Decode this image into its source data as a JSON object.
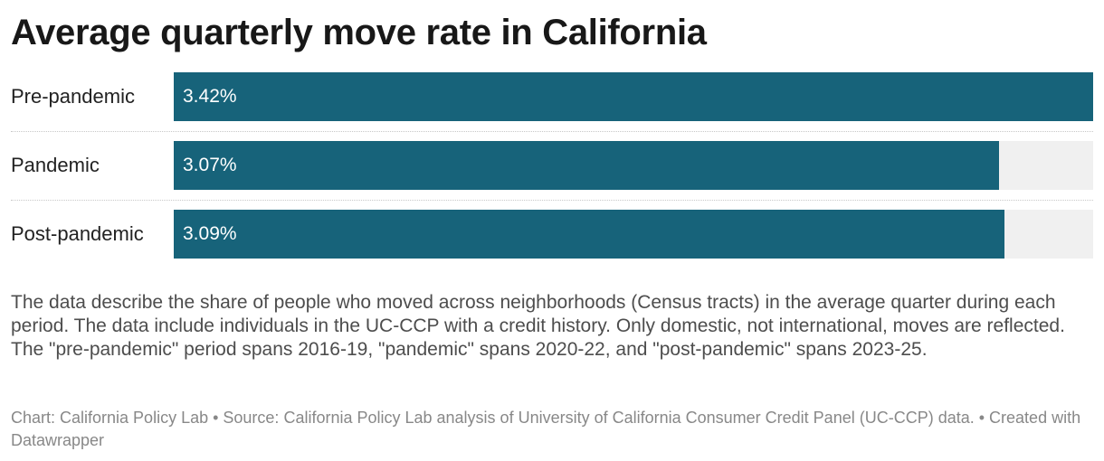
{
  "chart_data": {
    "type": "bar",
    "orientation": "horizontal",
    "title": "Average quarterly move rate in California",
    "categories": [
      "Pre-pandemic",
      "Pandemic",
      "Post-pandemic"
    ],
    "values": [
      3.42,
      3.07,
      3.09
    ],
    "value_labels": [
      "3.42%",
      "3.07%",
      "3.09%"
    ],
    "unit": "%",
    "xlim": [
      0,
      3.42
    ],
    "xlabel": "",
    "ylabel": "",
    "grid": false,
    "legend": "none",
    "bar_color": "#17637a",
    "track_color": "#f0f0f0"
  },
  "description": "The data describe the share of people who moved across neighborhoods (Census tracts) in the average quarter during each period. The data include individuals in the UC-CCP with a credit history. Only domestic, not international, moves are reflected. The \"pre-pandemic\" period spans 2016-19, \"pandemic\" spans 2020-22, and \"post-pandemic\" spans 2023-25.",
  "footer": "Chart: California Policy Lab • Source: California Policy Lab analysis of University of California Consumer Credit Panel (UC-CCP) data. • Created with Datawrapper"
}
